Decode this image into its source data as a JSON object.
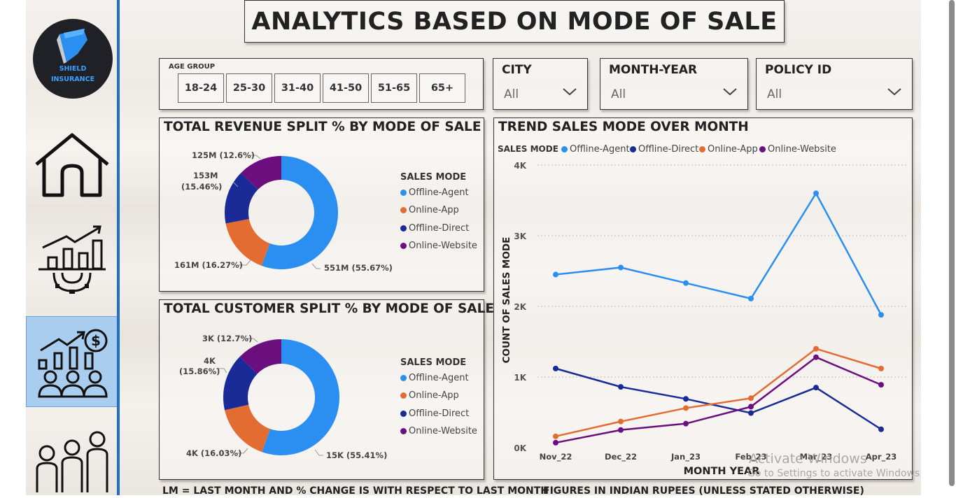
{
  "header": {
    "title": "ANALYTICS BASED ON MODE OF SALE"
  },
  "logo": {
    "line1": "SHIELD",
    "line2": "INSURANCE"
  },
  "sidebar": {
    "items": [
      {
        "icon": "home-icon"
      },
      {
        "icon": "growth-chart-gear-icon"
      },
      {
        "icon": "sales-growth-people-icon",
        "active": true
      },
      {
        "icon": "people-group-icon"
      }
    ]
  },
  "filters": {
    "age_group": {
      "label": "AGE GROUP",
      "options": [
        "18-24",
        "25-30",
        "31-40",
        "41-50",
        "51-65",
        "65+"
      ]
    },
    "city": {
      "label": "CITY",
      "value": "All"
    },
    "month_year": {
      "label": "MONTH-YEAR",
      "value": "All"
    },
    "policy_id": {
      "label": "POLICY ID",
      "value": "All"
    }
  },
  "colors": {
    "offline_agent": "#2a8ff0",
    "online_app": "#e36c33",
    "offline_direct": "#1a2a96",
    "online_website": "#6b0f7e",
    "sidebar_accent": "#1f6fc4"
  },
  "revenue_donut": {
    "title": "TOTAL REVENUE SPLIT % BY MODE OF SALE",
    "legend_title": "SALES MODE",
    "legend": [
      "Offline-Agent",
      "Online-App",
      "Offline-Direct",
      "Online-Website"
    ],
    "labels": {
      "offline_agent": "551M (55.67%)",
      "online_app": "161M (16.27%)",
      "offline_direct_a": "153M",
      "offline_direct_b": "(15.46%)",
      "online_website": "125M (12.6%)"
    }
  },
  "customer_donut": {
    "title": "TOTAL CUSTOMER SPLIT % BY MODE OF SALE",
    "legend_title": "SALES MODE",
    "legend": [
      "Offline-Agent",
      "Online-App",
      "Offline-Direct",
      "Online-Website"
    ],
    "labels": {
      "offline_agent": "15K (55.41%)",
      "online_app": "4K (16.03%)",
      "offline_direct_a": "4K",
      "offline_direct_b": "(15.86%)",
      "online_website": "3K (12.7%)"
    }
  },
  "trend": {
    "title": "TREND SALES MODE OVER MONTH",
    "legend_title": "SALES MODE",
    "legend": [
      "Offline-Agent",
      "Offline-Direct",
      "Online-App",
      "Online-Website"
    ]
  },
  "chart_data": [
    {
      "type": "pie",
      "title": "TOTAL REVENUE SPLIT % BY MODE OF SALE",
      "categories": [
        "Offline-Agent",
        "Online-App",
        "Offline-Direct",
        "Online-Website"
      ],
      "values": [
        551,
        161,
        153,
        125
      ],
      "percent": [
        55.67,
        16.27,
        15.46,
        12.6
      ],
      "unit": "M",
      "legend": "right"
    },
    {
      "type": "pie",
      "title": "TOTAL CUSTOMER SPLIT % BY MODE OF SALE",
      "categories": [
        "Offline-Agent",
        "Online-App",
        "Offline-Direct",
        "Online-Website"
      ],
      "values": [
        15,
        4,
        4,
        3
      ],
      "percent": [
        55.41,
        16.03,
        15.86,
        12.7
      ],
      "unit": "K",
      "legend": "right"
    },
    {
      "type": "line",
      "title": "TREND SALES MODE OVER MONTH",
      "xlabel": "MONTH YEAR",
      "ylabel": "COUNT OF SALES MODE",
      "categories": [
        "Nov_22",
        "Dec_22",
        "Jan_23",
        "Feb_23",
        "Mar_23",
        "Apr_23"
      ],
      "yticks": [
        "0K",
        "1K",
        "2K",
        "3K",
        "4K"
      ],
      "ylim": [
        0,
        4000
      ],
      "grid": true,
      "legend": "top-left",
      "series": [
        {
          "name": "Offline-Agent",
          "values": [
            2450,
            2550,
            2330,
            2110,
            3600,
            1880
          ]
        },
        {
          "name": "Offline-Direct",
          "values": [
            1120,
            860,
            690,
            490,
            850,
            260
          ]
        },
        {
          "name": "Online-App",
          "values": [
            160,
            370,
            560,
            700,
            1400,
            1120
          ]
        },
        {
          "name": "Online-Website",
          "values": [
            70,
            250,
            340,
            580,
            1280,
            890
          ]
        }
      ]
    }
  ],
  "footer": {
    "left": "LM = LAST MONTH AND % CHANGE IS WITH RESPECT TO LAST MONTH",
    "right": "FIGURES IN INDIAN RUPEES (UNLESS STATED OTHERWISE)"
  },
  "watermark": {
    "line1": "Activate Windows",
    "line2": "Go to Settings to activate Windows."
  }
}
